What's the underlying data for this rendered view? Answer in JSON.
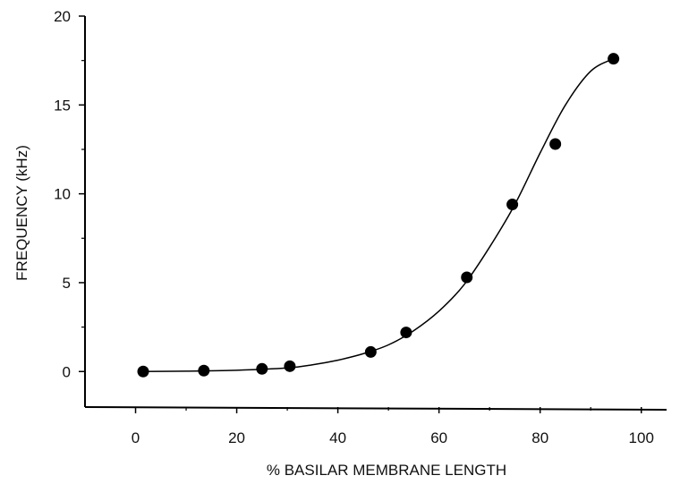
{
  "chart_data": {
    "type": "scatter",
    "title": "",
    "xlabel": "% BASILAR MEMBRANE LENGTH",
    "ylabel": "FREQUENCY (kHz)",
    "xlim": [
      -10,
      105
    ],
    "ylim": [
      -2,
      20
    ],
    "xticks": [
      0,
      20,
      40,
      60,
      80,
      100
    ],
    "yticks": [
      0,
      5,
      10,
      15,
      20
    ],
    "xtick_labels": [
      "0",
      "20",
      "40",
      "60",
      "80",
      "100"
    ],
    "ytick_labels": [
      "0",
      "5",
      "10",
      "15",
      "20"
    ],
    "grid": false,
    "series": [
      {
        "kind": "points",
        "x": [
          1.5,
          13.5,
          25,
          30.5,
          46.5,
          53.5,
          65.5,
          74.5,
          83,
          94.5
        ],
        "y": [
          0.0,
          0.05,
          0.15,
          0.3,
          1.1,
          2.2,
          5.3,
          9.4,
          12.8,
          17.6
        ]
      },
      {
        "kind": "fit-curve",
        "x": [
          1.5,
          10,
          20,
          30,
          35,
          40,
          45,
          50,
          55,
          60,
          65,
          70,
          75,
          80,
          85,
          90,
          94.5
        ],
        "y": [
          0.0,
          0.02,
          0.07,
          0.2,
          0.38,
          0.64,
          1.0,
          1.5,
          2.3,
          3.4,
          4.9,
          7.0,
          9.4,
          12.3,
          15.0,
          16.9,
          17.6
        ]
      }
    ]
  }
}
